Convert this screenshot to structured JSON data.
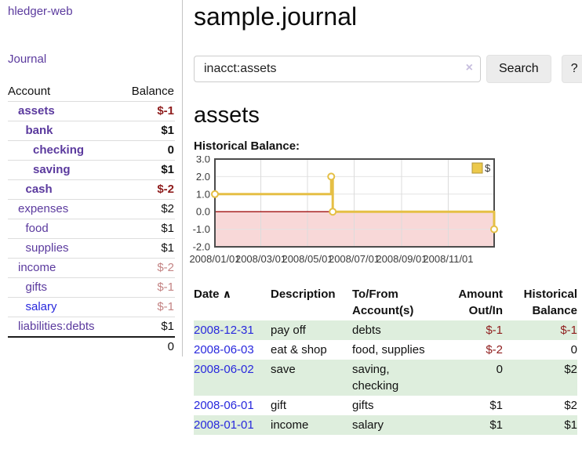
{
  "app": {
    "title": "hledger-web"
  },
  "colors": {
    "link-purple": "#5b3a9e",
    "link-blue": "#2828dd",
    "neg-strong": "#8f1d1d",
    "neg-muted": "#c48484",
    "row-green": "#deeedd",
    "divider": "#c4c4c4",
    "btn-bg": "#ececec"
  },
  "sidebar": {
    "journal_label": "Journal",
    "accounts": {
      "header_account": "Account",
      "header_balance": "Balance",
      "rows": [
        {
          "account": "assets",
          "balance": "$-1",
          "indent": 1,
          "bold": true,
          "balance_color": "negative-strong",
          "link_color": "purple"
        },
        {
          "account": "bank",
          "balance": "$1",
          "indent": 2,
          "bold": true,
          "balance_color": "normal",
          "link_color": "purple"
        },
        {
          "account": "checking",
          "balance": "0",
          "indent": 3,
          "bold": true,
          "balance_color": "normal",
          "link_color": "purple"
        },
        {
          "account": "saving",
          "balance": "$1",
          "indent": 3,
          "bold": true,
          "balance_color": "normal",
          "link_color": "purple"
        },
        {
          "account": "cash",
          "balance": "$-2",
          "indent": 2,
          "bold": true,
          "balance_color": "negative-strong",
          "link_color": "purple"
        },
        {
          "account": "expenses",
          "balance": "$2",
          "indent": 1,
          "bold": false,
          "balance_color": "normal",
          "link_color": "purple"
        },
        {
          "account": "food",
          "balance": "$1",
          "indent": 2,
          "bold": false,
          "balance_color": "normal",
          "link_color": "purple"
        },
        {
          "account": "supplies",
          "balance": "$1",
          "indent": 2,
          "bold": false,
          "balance_color": "normal",
          "link_color": "purple"
        },
        {
          "account": "income",
          "balance": "$-2",
          "indent": 1,
          "bold": false,
          "balance_color": "negative-muted",
          "link_color": "purple"
        },
        {
          "account": "gifts",
          "balance": "$-1",
          "indent": 2,
          "bold": false,
          "balance_color": "negative-muted",
          "link_color": "purple"
        },
        {
          "account": "salary",
          "balance": "$-1",
          "indent": 2,
          "bold": false,
          "balance_color": "negative-muted",
          "link_color": "blue"
        },
        {
          "account": "liabilities:debts",
          "balance": "$1",
          "indent": 1,
          "bold": false,
          "balance_color": "normal",
          "link_color": "purple"
        }
      ],
      "total": "0"
    }
  },
  "main": {
    "title": "sample.journal",
    "search": {
      "value": "inacct:assets",
      "clear_icon": "×",
      "button_label": "Search",
      "help_label": "?"
    },
    "account_heading": "assets"
  },
  "chart_data": {
    "type": "line",
    "step": true,
    "title": "Historical Balance:",
    "x_unit": "days since 2008-01-01",
    "xlim": [
      0,
      365
    ],
    "ylim": [
      -2,
      3
    ],
    "grid": true,
    "series": [
      {
        "name": "$",
        "color": "#e5bf45",
        "marker_fill": "#ffffff",
        "points": [
          {
            "x": 0,
            "date": "2008-01-01",
            "y": 1
          },
          {
            "x": 152,
            "date": "2008-06-01",
            "y": 2
          },
          {
            "x": 154,
            "date": "2008-06-03",
            "y": 0
          },
          {
            "x": 365,
            "date": "2008-12-31",
            "y": -1
          }
        ]
      }
    ],
    "yticks": [
      {
        "v": 3,
        "label": "3.0"
      },
      {
        "v": 2,
        "label": "2.0"
      },
      {
        "v": 1,
        "label": "1.0"
      },
      {
        "v": 0,
        "label": "0.0"
      },
      {
        "v": -1,
        "label": "-1.0"
      },
      {
        "v": -2,
        "label": "-2.0"
      }
    ],
    "xticks": [
      {
        "v": 0,
        "label": "2008/01/01"
      },
      {
        "v": 60,
        "label": "2008/03/01"
      },
      {
        "v": 121,
        "label": "2008/05/01"
      },
      {
        "v": 182,
        "label": "2008/07/01"
      },
      {
        "v": 244,
        "label": "2008/09/01"
      },
      {
        "v": 305,
        "label": "2008/11/01"
      }
    ],
    "negative_fill": "#f8d8d8",
    "zero_line_color": "#a01010",
    "gridline_color": "#dcdcdc",
    "border_color": "#4c4c4c",
    "legend": {
      "label": "$",
      "position": "top-right",
      "swatch_fill": "#ecc94b",
      "swatch_border": "#b1953a"
    }
  },
  "register": {
    "headers": {
      "date": "Date",
      "sort_icon": "∧",
      "description": "Description",
      "account": "To/From Account(s)",
      "amount": "Amount Out/In",
      "balance": "Historical Balance"
    },
    "rows": [
      {
        "date": "2008-12-31",
        "description": "pay off",
        "accounts": "debts",
        "amount": "$-1",
        "balance": "$-1",
        "amount_neg": true,
        "balance_neg": true
      },
      {
        "date": "2008-06-03",
        "description": "eat & shop",
        "accounts": "food, supplies",
        "amount": "$-2",
        "balance": "0",
        "amount_neg": true,
        "balance_neg": false
      },
      {
        "date": "2008-06-02",
        "description": "save",
        "accounts": "saving, checking",
        "amount": "0",
        "balance": "$2",
        "amount_neg": false,
        "balance_neg": false
      },
      {
        "date": "2008-06-01",
        "description": "gift",
        "accounts": "gifts",
        "amount": "$1",
        "balance": "$2",
        "amount_neg": false,
        "balance_neg": false
      },
      {
        "date": "2008-01-01",
        "description": "income",
        "accounts": "salary",
        "amount": "$1",
        "balance": "$1",
        "amount_neg": false,
        "balance_neg": false
      }
    ]
  }
}
